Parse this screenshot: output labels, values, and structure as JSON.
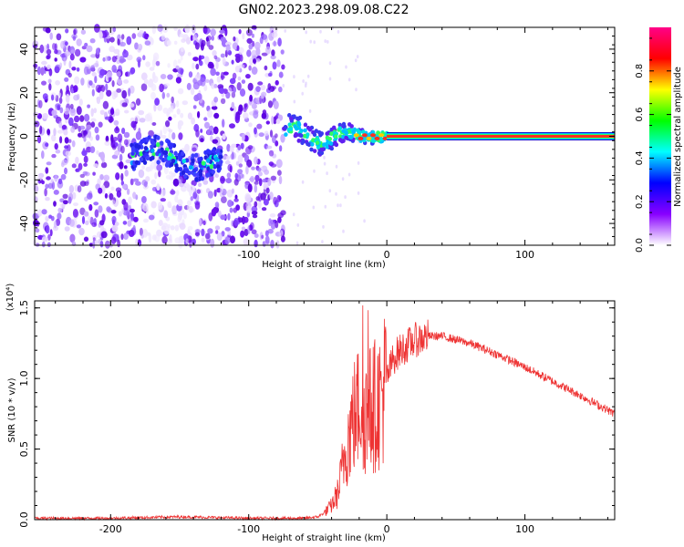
{
  "title": "GN02.2023.298.09.08.C22",
  "chart_data": [
    {
      "type": "heatmap",
      "name": "spectrogram",
      "xlabel": "Height of straight line (km)",
      "ylabel": "Frequency (Hz)",
      "xlim": [
        -255,
        165
      ],
      "ylim": [
        -50,
        50
      ],
      "xticks": [
        -200,
        -100,
        0,
        100
      ],
      "yticks": [
        -40,
        -20,
        0,
        20,
        40
      ],
      "xtick_labels": [
        "-200",
        "-100",
        "0",
        "100"
      ],
      "ytick_labels": [
        "-40",
        "-20",
        "0",
        "20",
        "40"
      ],
      "colorbar": {
        "label": "Normalized spectral amplitude",
        "range": [
          0,
          1
        ],
        "ticks": [
          0.0,
          0.2,
          0.4,
          0.6,
          0.8
        ],
        "tick_labels": [
          "0.0",
          "0.2",
          "0.4",
          "0.6",
          "0.8"
        ],
        "colors": [
          "#ffffff",
          "#8800ff",
          "#0000ff",
          "#00ffff",
          "#00ff00",
          "#ffff00",
          "#ff0000",
          "#ff0088"
        ]
      },
      "features": {
        "noise_region_x": [
          -255,
          -75
        ],
        "signal_line_x": [
          0,
          165
        ],
        "signal_line_freq": 0,
        "transition_x": [
          -75,
          0
        ]
      }
    },
    {
      "type": "line",
      "name": "snr",
      "xlabel": "Height of straight line (km)",
      "ylabel": "SNR (10 * v/v)",
      "multiplier": "(x10⁴)",
      "xlim": [
        -255,
        165
      ],
      "ylim": [
        0,
        1.55
      ],
      "xticks": [
        -200,
        -100,
        0,
        100
      ],
      "yticks": [
        0.0,
        0.5,
        1.0,
        1.5
      ],
      "xtick_labels": [
        "-200",
        "-100",
        "0",
        "100"
      ],
      "ytick_labels": [
        "0.0",
        "0.5",
        "1.0",
        "1.5"
      ],
      "color": "#ee3333",
      "series": [
        {
          "name": "SNR",
          "x": [
            -255,
            -200,
            -150,
            -100,
            -60,
            -50,
            -45,
            -40,
            -35,
            -30,
            -25,
            -20,
            -15,
            -10,
            -5,
            0,
            5,
            10,
            20,
            30,
            40,
            60,
            80,
            100,
            120,
            140,
            165
          ],
          "values": [
            0.01,
            0.01,
            0.02,
            0.01,
            0.01,
            0.02,
            0.05,
            0.1,
            0.2,
            0.5,
            0.7,
            0.8,
            0.75,
            0.8,
            0.85,
            1.0,
            1.15,
            1.2,
            1.27,
            1.3,
            1.3,
            1.25,
            1.17,
            1.08,
            0.98,
            0.88,
            0.75
          ]
        }
      ]
    }
  ]
}
